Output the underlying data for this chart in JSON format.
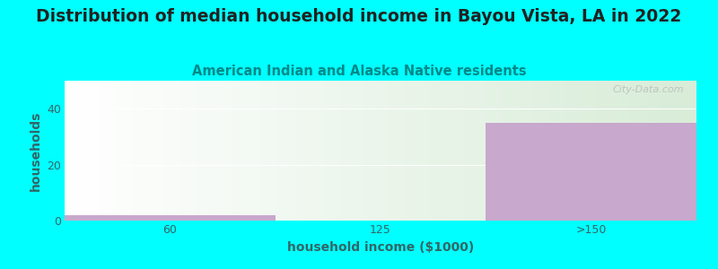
{
  "title": "Distribution of median household income in Bayou Vista, LA in 2022",
  "subtitle": "American Indian and Alaska Native residents",
  "xlabel": "household income ($1000)",
  "ylabel": "households",
  "background_color": "#00FFFF",
  "plot_bg_top": "#ffffff",
  "plot_bg_bottom": "#d8ecd8",
  "categories": [
    "60",
    "125",
    ">150"
  ],
  "values": [
    2,
    0,
    35
  ],
  "bar_color_purple": "#c8a8cc",
  "ylim": [
    0,
    50
  ],
  "yticks": [
    0,
    20,
    40
  ],
  "title_fontsize": 13.5,
  "subtitle_fontsize": 10.5,
  "axis_label_fontsize": 10,
  "tick_fontsize": 9,
  "title_color": "#222222",
  "subtitle_color": "#008888",
  "axis_label_color": "#336666",
  "tick_color": "#336666",
  "watermark": "City-Data.com",
  "watermark_icon": "●"
}
